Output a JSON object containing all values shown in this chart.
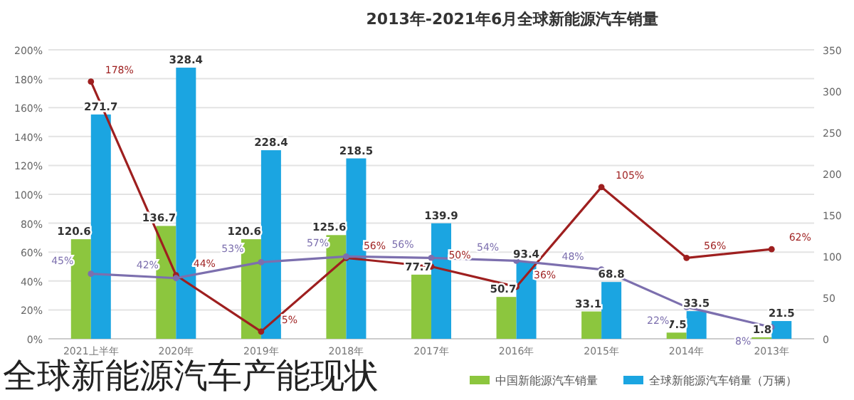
{
  "chart_data": {
    "type": "bar",
    "title": "2013年-2021年6月全球新能源汽车销量",
    "categories": [
      "2021上半年",
      "2020年",
      "2019年",
      "2018年",
      "2017年",
      "2016年",
      "2015年",
      "2014年",
      "2013年"
    ],
    "series": [
      {
        "name": "中国新能源汽车销量",
        "axis": "y2",
        "color": "#8cc63e",
        "values": [
          120.6,
          136.7,
          120.6,
          125.6,
          77.7,
          50.7,
          33.1,
          7.5,
          1.8
        ],
        "value_labels": [
          "120.6",
          "136.7",
          "120.6",
          "125.6",
          "77.7",
          "50.7",
          "33.1",
          "7.5",
          "1.8"
        ]
      },
      {
        "name": "全球新能源汽车销量（万辆）",
        "axis": "y2",
        "color": "#1ba5e1",
        "values": [
          271.7,
          328.4,
          228.4,
          218.5,
          139.9,
          93.4,
          68.8,
          33.5,
          21.5
        ],
        "value_labels": [
          "271.7",
          "328.4",
          "228.4",
          "218.5",
          "139.9",
          "93.4",
          "68.8",
          "33.5",
          "21.5"
        ]
      },
      {
        "type": "line",
        "axis": "y",
        "color": "#9e1f1f",
        "values": [
          178,
          44,
          5,
          56,
          50,
          36,
          105,
          56,
          62
        ],
        "value_labels": [
          "178%",
          "44%",
          "5%",
          "56%",
          "50%",
          "36%",
          "105%",
          "56%",
          "62%"
        ]
      },
      {
        "type": "line",
        "axis": "y",
        "color": "#7c6fae",
        "values": [
          45,
          42,
          53,
          57,
          56,
          54,
          48,
          22,
          8
        ],
        "value_labels": [
          "45%",
          "42%",
          "53%",
          "57%",
          "56%",
          "54%",
          "48%",
          "22%",
          "8%"
        ]
      }
    ],
    "ylim": [
      0,
      200
    ],
    "yticks": [
      {
        "value": 0,
        "label": "0%"
      },
      {
        "value": 20,
        "label": "20%"
      },
      {
        "value": 40,
        "label": "40%"
      },
      {
        "value": 60,
        "label": "60%"
      },
      {
        "value": 80,
        "label": "80%"
      },
      {
        "value": 100,
        "label": "100%"
      },
      {
        "value": 120,
        "label": "120%"
      },
      {
        "value": 140,
        "label": "140%"
      },
      {
        "value": 160,
        "label": "160%"
      },
      {
        "value": 180,
        "label": "180%"
      },
      {
        "value": 200,
        "label": "200%"
      }
    ],
    "y2lim": [
      0,
      350
    ],
    "y2ticks": [
      0,
      50,
      100,
      150,
      200,
      250,
      300,
      350
    ],
    "grid": "y",
    "legend": "bottom",
    "marker": "circle",
    "annotations": [
      "全球新能源汽车产能现状"
    ]
  }
}
